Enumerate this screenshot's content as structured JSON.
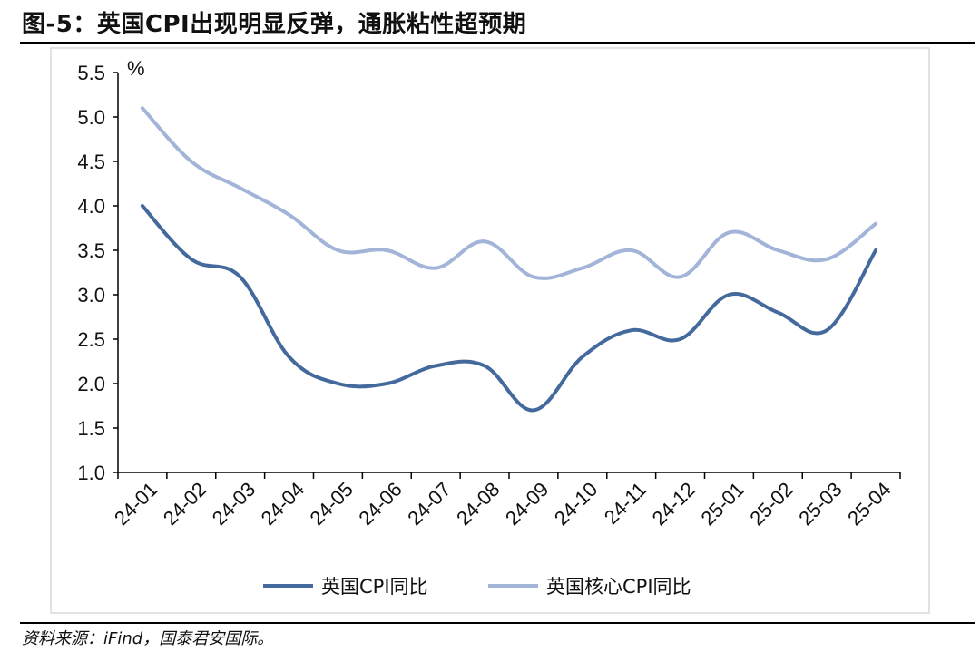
{
  "title": "图-5：英国CPI出现明显反弹，通胀粘性超预期",
  "source": "资料来源：iFind，国泰君安国际。",
  "chart_data": {
    "type": "line",
    "title": "",
    "xlabel": "",
    "ylabel": "%",
    "ylim": [
      1.0,
      5.5
    ],
    "yticks": [
      "1.0",
      "1.5",
      "2.0",
      "2.5",
      "3.0",
      "3.5",
      "4.0",
      "4.5",
      "5.0",
      "5.5"
    ],
    "categories": [
      "24-01",
      "24-02",
      "24-03",
      "24-04",
      "24-05",
      "24-06",
      "24-07",
      "24-08",
      "24-09",
      "24-10",
      "24-11",
      "24-12",
      "25-01",
      "25-02",
      "25-03",
      "25-04"
    ],
    "grid": false,
    "legend_position": "bottom",
    "series": [
      {
        "name": "英国CPI同比",
        "color": "#44699c",
        "values": [
          4.0,
          3.4,
          3.2,
          2.3,
          2.0,
          2.0,
          2.2,
          2.2,
          1.7,
          2.3,
          2.6,
          2.5,
          3.0,
          2.8,
          2.6,
          3.5
        ]
      },
      {
        "name": "英国核心CPI同比",
        "color": "#a3b4d9",
        "values": [
          5.1,
          4.5,
          4.2,
          3.9,
          3.5,
          3.5,
          3.3,
          3.6,
          3.2,
          3.3,
          3.5,
          3.2,
          3.7,
          3.5,
          3.4,
          3.8
        ]
      }
    ]
  }
}
